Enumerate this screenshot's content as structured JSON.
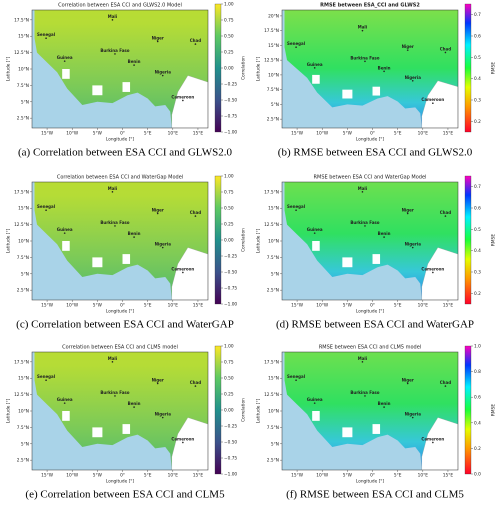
{
  "panels": [
    {
      "title": "Correlation between ESA CCI and GLWS2.0 Model",
      "xlabel": "Longitude [°]",
      "ylabel": "Latitude [°]",
      "xlim": [
        -18,
        17
      ],
      "ylim": [
        1,
        19
      ],
      "xticks": [
        {
          "value": -15,
          "label": "15°W"
        },
        {
          "value": -10,
          "label": "10°W"
        },
        {
          "value": -5,
          "label": "5°W"
        },
        {
          "value": 0,
          "label": "0°"
        },
        {
          "value": 5,
          "label": "5°E"
        },
        {
          "value": 10,
          "label": "10°E"
        },
        {
          "value": 15,
          "label": "15°E"
        }
      ],
      "yticks": [
        {
          "value": 17.5,
          "label": "17.5°N"
        },
        {
          "value": 15,
          "label": "15°N"
        },
        {
          "value": 12.5,
          "label": "12.5°N"
        },
        {
          "value": 10,
          "label": "10°N"
        },
        {
          "value": 7.5,
          "label": "7.5°N"
        },
        {
          "value": 5,
          "label": "5°N"
        },
        {
          "value": 2.5,
          "label": "2.5°N"
        }
      ],
      "colorbar": {
        "label": "Correlation",
        "colormap": "viridis",
        "lim": [
          -1,
          1
        ],
        "ticks": [
          {
            "value": 1,
            "label": "1.00"
          },
          {
            "value": 0.75,
            "label": "0.75"
          },
          {
            "value": 0.5,
            "label": "0.50"
          },
          {
            "value": 0.25,
            "label": "0.25"
          },
          {
            "value": 0,
            "label": "0.00"
          },
          {
            "value": -0.25,
            "label": "−0.25"
          },
          {
            "value": -0.5,
            "label": "−0.50"
          },
          {
            "value": -0.75,
            "label": "−0.75"
          },
          {
            "value": -1,
            "label": "−1.00"
          }
        ]
      },
      "places": [
        "Mali",
        "Niger",
        "Chad",
        "Senegal",
        "Guinea",
        "Burkina Faso",
        "Benin",
        "Nigeria",
        "Cameroon"
      ],
      "caption": "(a) Correlation between ESA CCI and GLWS2.0"
    },
    {
      "title": "RMSE between ESA_CCI and GLWS2",
      "xlabel": "Longitude [°]",
      "ylabel": "Latitude [°]",
      "xlim": [
        -18,
        17
      ],
      "ylim": [
        1,
        21
      ],
      "xticks": [
        {
          "value": -15,
          "label": "15°W"
        },
        {
          "value": -10,
          "label": "10°W"
        },
        {
          "value": -5,
          "label": "5°W"
        },
        {
          "value": 0,
          "label": "0°"
        },
        {
          "value": 5,
          "label": "5°E"
        },
        {
          "value": 10,
          "label": "10°E"
        },
        {
          "value": 15,
          "label": "15°E"
        }
      ],
      "yticks": [
        {
          "value": 20,
          "label": "20°N"
        },
        {
          "value": 17.5,
          "label": "17.5°N"
        },
        {
          "value": 15,
          "label": "15°N"
        },
        {
          "value": 12.5,
          "label": "12.5°N"
        },
        {
          "value": 10,
          "label": "10°N"
        },
        {
          "value": 7.5,
          "label": "7.5°N"
        },
        {
          "value": 5,
          "label": "5°N"
        },
        {
          "value": 2.5,
          "label": "2.5°N"
        }
      ],
      "colorbar": {
        "label": "RMSE",
        "colormap": "rainbow",
        "lim": [
          0.15,
          0.75
        ],
        "ticks": [
          0.7,
          0.6,
          0.5,
          0.4,
          0.3,
          0.2
        ]
      },
      "places": [
        "Mali",
        "Niger",
        "Chad",
        "Senegal",
        "Guinea",
        "Burkina Faso",
        "Benin",
        "Nigeria",
        "Cameroon"
      ],
      "caption": "(b) RMSE between ESA CCI and GLWS2.0"
    },
    {
      "title": "Correlation between ESA CCI and WaterGap Model",
      "xlabel": "Longitude [°]",
      "ylabel": "Latitude [°]",
      "xlim": [
        -18,
        17
      ],
      "ylim": [
        1,
        19
      ],
      "xticks": [
        {
          "value": -15,
          "label": "15°W"
        },
        {
          "value": -10,
          "label": "10°W"
        },
        {
          "value": -5,
          "label": "5°W"
        },
        {
          "value": 0,
          "label": "0°"
        },
        {
          "value": 5,
          "label": "5°E"
        },
        {
          "value": 10,
          "label": "10°E"
        },
        {
          "value": 15,
          "label": "15°E"
        }
      ],
      "yticks": [
        {
          "value": 17.5,
          "label": "17.5°N"
        },
        {
          "value": 15,
          "label": "15°N"
        },
        {
          "value": 12.5,
          "label": "12.5°N"
        },
        {
          "value": 10,
          "label": "10°N"
        },
        {
          "value": 7.5,
          "label": "7.5°N"
        },
        {
          "value": 5,
          "label": "5°N"
        },
        {
          "value": 2.5,
          "label": "2.5°N"
        }
      ],
      "colorbar": {
        "label": "Correlation",
        "colormap": "viridis",
        "lim": [
          -1,
          1
        ],
        "ticks": [
          {
            "value": 1,
            "label": "1.00"
          },
          {
            "value": 0.75,
            "label": "0.75"
          },
          {
            "value": 0.5,
            "label": "0.50"
          },
          {
            "value": 0.25,
            "label": "0.25"
          },
          {
            "value": 0,
            "label": "0.00"
          },
          {
            "value": -0.25,
            "label": "−0.25"
          },
          {
            "value": -0.5,
            "label": "−0.50"
          },
          {
            "value": -0.75,
            "label": "−0.75"
          },
          {
            "value": -1,
            "label": "−1.00"
          }
        ]
      },
      "places": [
        "Mali",
        "Niger",
        "Chad",
        "Senegal",
        "Guinea",
        "Burkina Faso",
        "Benin",
        "Nigeria",
        "Cameroon"
      ],
      "caption": "(c) Correlation between ESA CCI and WaterGAP"
    },
    {
      "title": "RMSE between ESA CCI and WaterGap Model",
      "xlabel": "Longitude [°]",
      "ylabel": "Latitude [°]",
      "xlim": [
        -18,
        17
      ],
      "ylim": [
        1,
        19
      ],
      "xticks": [
        {
          "value": -15,
          "label": "15°W"
        },
        {
          "value": -10,
          "label": "10°W"
        },
        {
          "value": -5,
          "label": "5°W"
        },
        {
          "value": 0,
          "label": "0°"
        },
        {
          "value": 5,
          "label": "5°E"
        },
        {
          "value": 10,
          "label": "10°E"
        },
        {
          "value": 15,
          "label": "15°E"
        }
      ],
      "yticks": [
        {
          "value": 17.5,
          "label": "17.5°N"
        },
        {
          "value": 15,
          "label": "15°N"
        },
        {
          "value": 12.5,
          "label": "12.5°N"
        },
        {
          "value": 10,
          "label": "10°N"
        },
        {
          "value": 7.5,
          "label": "7.5°N"
        },
        {
          "value": 5,
          "label": "5°N"
        },
        {
          "value": 2.5,
          "label": "2.5°N"
        }
      ],
      "colorbar": {
        "label": "RMSE",
        "colormap": "rainbow",
        "lim": [
          0.15,
          0.75
        ],
        "ticks": [
          0.7,
          0.6,
          0.5,
          0.4,
          0.3,
          0.2
        ]
      },
      "places": [
        "Mali",
        "Niger",
        "Chad",
        "Senegal",
        "Guinea",
        "Burkina Faso",
        "Benin",
        "Nigeria",
        "Cameroon"
      ],
      "caption": "(d) RMSE between ESA CCI and WaterGAP"
    },
    {
      "title": "Correlation between ESA CCI and CLM5 model",
      "xlabel": "Longitude [°]",
      "ylabel": "Latitude [°]",
      "xlim": [
        -18,
        17
      ],
      "ylim": [
        1,
        19
      ],
      "xticks": [
        {
          "value": -15,
          "label": "15°W"
        },
        {
          "value": -10,
          "label": "10°W"
        },
        {
          "value": -5,
          "label": "5°W"
        },
        {
          "value": 0,
          "label": "0°"
        },
        {
          "value": 5,
          "label": "5°E"
        },
        {
          "value": 10,
          "label": "10°E"
        },
        {
          "value": 15,
          "label": "15°E"
        }
      ],
      "yticks": [
        {
          "value": 17.5,
          "label": "17.5°N"
        },
        {
          "value": 15,
          "label": "15°N"
        },
        {
          "value": 12.5,
          "label": "12.5°N"
        },
        {
          "value": 10,
          "label": "10°N"
        },
        {
          "value": 7.5,
          "label": "7.5°N"
        },
        {
          "value": 5,
          "label": "5°N"
        },
        {
          "value": 2.5,
          "label": "2.5°N"
        }
      ],
      "colorbar": {
        "label": "Correlation",
        "colormap": "viridis",
        "lim": [
          -1,
          1
        ],
        "ticks": [
          {
            "value": 1,
            "label": "1.00"
          },
          {
            "value": 0.75,
            "label": "0.75"
          },
          {
            "value": 0.5,
            "label": "0.50"
          },
          {
            "value": 0.25,
            "label": "0.25"
          },
          {
            "value": 0,
            "label": "0.00"
          },
          {
            "value": -0.25,
            "label": "−0.25"
          },
          {
            "value": -0.5,
            "label": "−0.50"
          },
          {
            "value": -0.75,
            "label": "−0.75"
          },
          {
            "value": -1,
            "label": "−1.00"
          }
        ]
      },
      "places": [
        "Mali",
        "Niger",
        "Chad",
        "Senegal",
        "Guinea",
        "Burkina Faso",
        "Benin",
        "Nigeria",
        "Cameroon"
      ],
      "caption": "(e) Correlation between ESA CCI and CLM5"
    },
    {
      "title": "RMSE between ESA CCI and CLM5 model",
      "xlabel": "Longitude [°]",
      "ylabel": "Latitude [°]",
      "xlim": [
        -18,
        17
      ],
      "ylim": [
        1,
        19
      ],
      "xticks": [
        {
          "value": -15,
          "label": "15°W"
        },
        {
          "value": -10,
          "label": "10°W"
        },
        {
          "value": -5,
          "label": "5°W"
        },
        {
          "value": 0,
          "label": "0°"
        },
        {
          "value": 5,
          "label": "5°E"
        },
        {
          "value": 10,
          "label": "10°E"
        },
        {
          "value": 15,
          "label": "15°E"
        }
      ],
      "yticks": [
        {
          "value": 17.5,
          "label": "17.5°N"
        },
        {
          "value": 15,
          "label": "15°N"
        },
        {
          "value": 12.5,
          "label": "12.5°N"
        },
        {
          "value": 10,
          "label": "10°N"
        },
        {
          "value": 7.5,
          "label": "7.5°N"
        },
        {
          "value": 5,
          "label": "5°N"
        },
        {
          "value": 2.5,
          "label": "2.5°N"
        }
      ],
      "colorbar": {
        "label": "RMSE",
        "colormap": "rainbow",
        "lim": [
          0,
          1
        ],
        "ticks": [
          {
            "value": 1,
            "label": "1.0"
          },
          0.8,
          0.6,
          0.4,
          0.2,
          {
            "value": 0,
            "label": "0.0"
          }
        ]
      },
      "places": [
        "Mali",
        "Niger",
        "Chad",
        "Senegal",
        "Guinea",
        "Burkina Faso",
        "Benin",
        "Nigeria",
        "Cameroon"
      ],
      "caption": "(f) RMSE between ESA CCI and CLM5"
    }
  ]
}
